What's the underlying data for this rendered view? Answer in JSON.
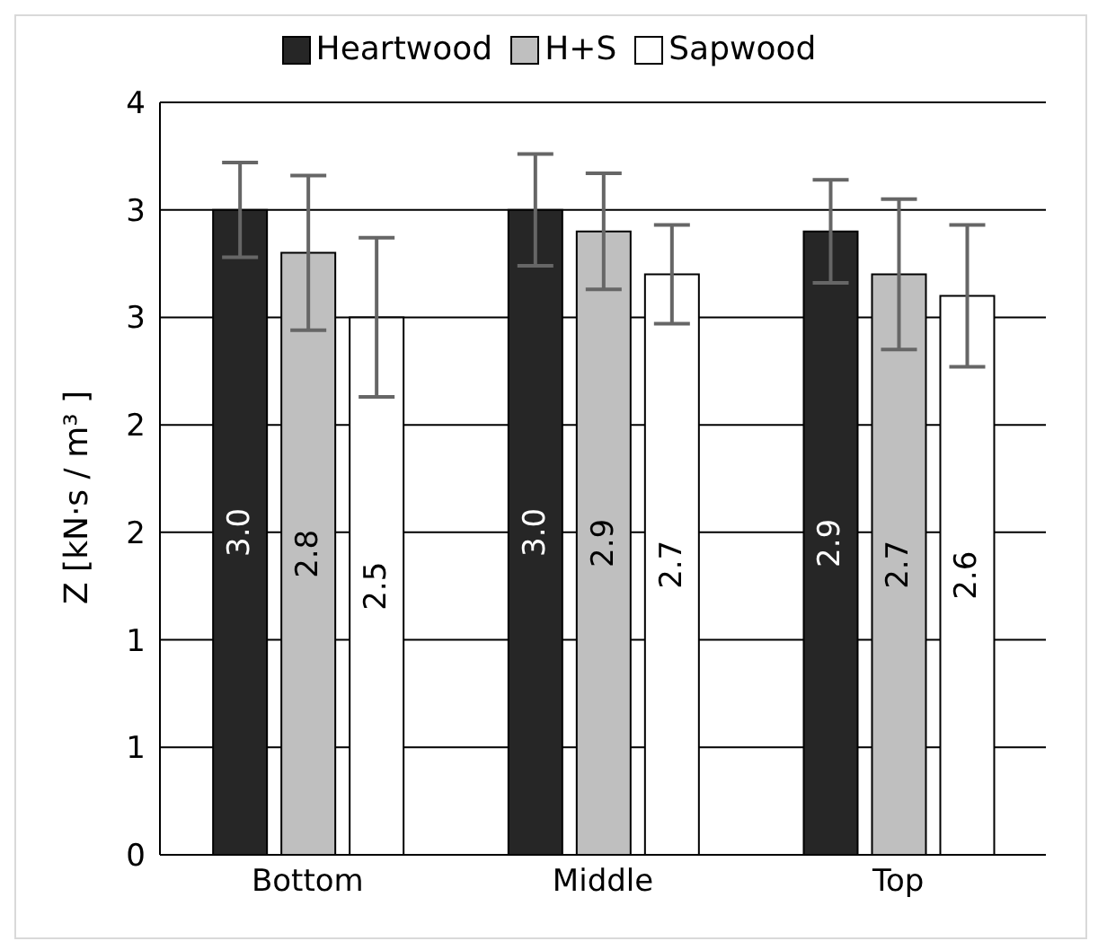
{
  "chart_data": {
    "type": "bar",
    "ylabel": "Z [kN·s / m³ ]",
    "categories": [
      "Bottom",
      "Middle",
      "Top"
    ],
    "series": [
      {
        "name": "Heartwood",
        "color": "#262626",
        "values": [
          3.0,
          3.0,
          2.9
        ],
        "errors": [
          0.22,
          0.26,
          0.24
        ],
        "value_labels": [
          "3.0",
          "3.0",
          "2.9"
        ]
      },
      {
        "name": "H+S",
        "color": "#bfbfbf",
        "values": [
          2.8,
          2.9,
          2.7
        ],
        "errors": [
          0.36,
          0.27,
          0.35
        ],
        "value_labels": [
          "2.8",
          "2.9",
          "2.7"
        ]
      },
      {
        "name": "Sapwood",
        "color": "#ffffff",
        "values": [
          2.5,
          2.7,
          2.6
        ],
        "errors": [
          0.37,
          0.23,
          0.33
        ],
        "value_labels": [
          "2.5",
          "2.7",
          "2.6"
        ]
      }
    ],
    "ylim": [
      0,
      3.5
    ],
    "yticks": [
      0,
      {
        "value": 0.5,
        "label": "1"
      },
      1,
      {
        "value": 1.5,
        "label": "2"
      },
      2,
      {
        "value": 2.5,
        "label": "3"
      },
      3,
      {
        "value": 3.5,
        "label": "4"
      }
    ],
    "grid": "y",
    "legend": "top"
  }
}
